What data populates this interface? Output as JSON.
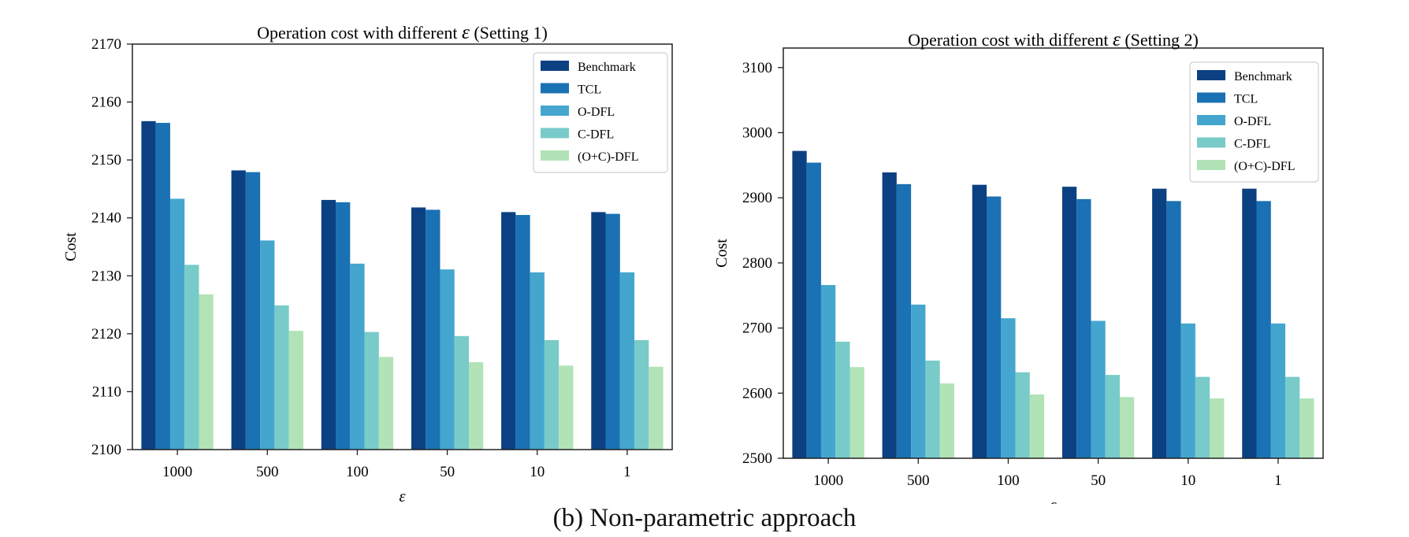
{
  "caption": "(b) Non-parametric approach",
  "colors": [
    "#0b4182",
    "#1a71b3",
    "#44a6ce",
    "#78cbc9",
    "#b2e3b7"
  ],
  "chart_data": [
    {
      "type": "bar",
      "title_prefix": "Operation cost with different ",
      "title_symbol": "ε",
      "title_suffix": " (Setting 1)",
      "xlabel": "ε",
      "ylabel": "Cost",
      "categories": [
        "1000",
        "500",
        "100",
        "50",
        "10",
        "1"
      ],
      "ylim": [
        2100,
        2170
      ],
      "yticks": [
        2100,
        2110,
        2120,
        2130,
        2140,
        2150,
        2160,
        2170
      ],
      "legend_position": "top-right",
      "grid": false,
      "series": [
        {
          "name": "Benchmark",
          "values": [
            2156.7,
            2148.2,
            2143.1,
            2141.8,
            2141.0,
            2141.0
          ]
        },
        {
          "name": "TCL",
          "values": [
            2156.4,
            2147.9,
            2142.7,
            2141.4,
            2140.5,
            2140.7
          ]
        },
        {
          "name": "O-DFL",
          "values": [
            2143.3,
            2136.1,
            2132.1,
            2131.1,
            2130.6,
            2130.6
          ]
        },
        {
          "name": "C-DFL",
          "values": [
            2131.9,
            2124.9,
            2120.3,
            2119.6,
            2118.9,
            2118.9
          ]
        },
        {
          "name": "(O+C)-DFL",
          "values": [
            2126.8,
            2120.5,
            2116.0,
            2115.1,
            2114.5,
            2114.3
          ]
        }
      ]
    },
    {
      "type": "bar",
      "title_prefix": "Operation cost with different ",
      "title_symbol": "ε",
      "title_suffix": " (Setting 2)",
      "xlabel": "ε",
      "ylabel": "Cost",
      "categories": [
        "1000",
        "500",
        "100",
        "50",
        "10",
        "1"
      ],
      "ylim": [
        2500,
        3130
      ],
      "yticks": [
        2500,
        2600,
        2700,
        2800,
        2900,
        3000,
        3100
      ],
      "legend_position": "top-right",
      "grid": false,
      "series": [
        {
          "name": "Benchmark",
          "values": [
            2972,
            2939,
            2920,
            2917,
            2914,
            2914
          ]
        },
        {
          "name": "TCL",
          "values": [
            2954,
            2921,
            2902,
            2898,
            2895,
            2895
          ]
        },
        {
          "name": "O-DFL",
          "values": [
            2766,
            2736,
            2715,
            2711,
            2707,
            2707
          ]
        },
        {
          "name": "C-DFL",
          "values": [
            2679,
            2650,
            2632,
            2628,
            2625,
            2625
          ]
        },
        {
          "name": "(O+C)-DFL",
          "values": [
            2640,
            2615,
            2598,
            2594,
            2592,
            2592
          ]
        }
      ]
    }
  ]
}
